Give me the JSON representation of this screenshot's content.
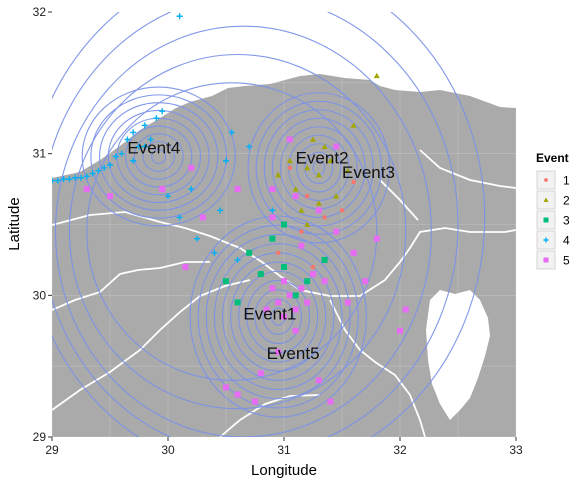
{
  "chart_data": {
    "type": "scatter",
    "title": "",
    "xlabel": "Longitude",
    "ylabel": "Latitude",
    "xlim": [
      29,
      33
    ],
    "ylim": [
      29,
      32
    ],
    "x_ticks": [
      29,
      30,
      31,
      32,
      33
    ],
    "y_ticks": [
      29,
      30,
      31,
      32
    ],
    "x_tick_labels": [
      "29",
      "30",
      "31",
      "32",
      "33"
    ],
    "y_tick_labels": [
      "29",
      "30",
      "31",
      "32"
    ],
    "grid": true,
    "legend": {
      "title": "Event",
      "placement": "right",
      "entries": [
        {
          "label": "1",
          "color": "#F8766D",
          "shape": "circle"
        },
        {
          "label": "2",
          "color": "#A3A500",
          "shape": "triangle"
        },
        {
          "label": "3",
          "color": "#00BF7D",
          "shape": "square"
        },
        {
          "label": "4",
          "color": "#00B0F6",
          "shape": "plus"
        },
        {
          "label": "5",
          "color": "#E76BF3",
          "shape": "square"
        }
      ]
    },
    "annotations": [
      {
        "text": "Event4",
        "x": 29.65,
        "y": 31.0
      },
      {
        "text": "Event2",
        "x": 31.1,
        "y": 30.93
      },
      {
        "text": "Event3",
        "x": 31.5,
        "y": 30.83
      },
      {
        "text": "Event1",
        "x": 30.65,
        "y": 29.83
      },
      {
        "text": "Event5",
        "x": 30.85,
        "y": 29.55
      }
    ],
    "series": [
      {
        "name": "1",
        "points": [
          [
            31.2,
            30.7
          ],
          [
            31.35,
            30.55
          ],
          [
            31.05,
            30.9
          ],
          [
            31.5,
            30.6
          ],
          [
            30.95,
            30.3
          ],
          [
            31.25,
            30.2
          ],
          [
            31.6,
            30.8
          ],
          [
            31.15,
            30.45
          ]
        ]
      },
      {
        "name": "2",
        "points": [
          [
            31.2,
            30.9
          ],
          [
            31.3,
            30.85
          ],
          [
            31.4,
            30.95
          ],
          [
            31.1,
            30.75
          ],
          [
            31.35,
            31.05
          ],
          [
            31.45,
            30.7
          ],
          [
            31.05,
            30.95
          ],
          [
            31.25,
            31.1
          ],
          [
            31.55,
            30.88
          ],
          [
            31.15,
            30.6
          ],
          [
            31.3,
            30.65
          ],
          [
            30.95,
            30.85
          ],
          [
            31.6,
            31.2
          ],
          [
            31.8,
            31.55
          ],
          [
            31.2,
            30.5
          ]
        ]
      },
      {
        "name": "3",
        "points": [
          [
            30.9,
            30.4
          ],
          [
            31.0,
            30.2
          ],
          [
            31.1,
            30.0
          ],
          [
            30.8,
            30.15
          ],
          [
            31.2,
            30.1
          ],
          [
            30.7,
            30.3
          ],
          [
            30.5,
            30.1
          ],
          [
            31.35,
            30.25
          ],
          [
            31.0,
            30.5
          ],
          [
            30.6,
            29.95
          ]
        ]
      },
      {
        "name": "4",
        "points": [
          [
            29.7,
            31.15
          ],
          [
            29.75,
            31.05
          ],
          [
            29.8,
            31.2
          ],
          [
            29.65,
            31.1
          ],
          [
            29.85,
            31.1
          ],
          [
            29.6,
            31.0
          ],
          [
            29.9,
            31.25
          ],
          [
            29.55,
            30.98
          ],
          [
            29.7,
            30.95
          ],
          [
            29.8,
            31.05
          ],
          [
            29.95,
            31.3
          ],
          [
            29.5,
            30.92
          ],
          [
            29.45,
            30.9
          ],
          [
            29.4,
            30.88
          ],
          [
            29.35,
            30.86
          ],
          [
            29.3,
            30.84
          ],
          [
            29.25,
            30.83
          ],
          [
            29.2,
            30.83
          ],
          [
            29.15,
            30.82
          ],
          [
            29.1,
            30.82
          ],
          [
            29.05,
            30.81
          ],
          [
            29.0,
            30.81
          ],
          [
            30.0,
            30.7
          ],
          [
            30.1,
            30.55
          ],
          [
            30.25,
            30.4
          ],
          [
            30.4,
            30.3
          ],
          [
            30.6,
            30.25
          ],
          [
            30.9,
            30.6
          ],
          [
            30.5,
            30.95
          ],
          [
            30.55,
            31.15
          ],
          [
            30.7,
            31.05
          ],
          [
            30.45,
            30.6
          ],
          [
            30.2,
            30.75
          ],
          [
            30.1,
            31.97
          ]
        ]
      },
      {
        "name": "5",
        "points": [
          [
            30.95,
            29.95
          ],
          [
            31.0,
            29.85
          ],
          [
            31.05,
            30.0
          ],
          [
            31.1,
            29.9
          ],
          [
            30.9,
            30.05
          ],
          [
            31.15,
            30.05
          ],
          [
            30.85,
            29.9
          ],
          [
            31.2,
            29.95
          ],
          [
            31.0,
            30.1
          ],
          [
            31.25,
            30.15
          ],
          [
            31.35,
            30.1
          ],
          [
            31.1,
            29.75
          ],
          [
            30.95,
            29.6
          ],
          [
            30.8,
            29.45
          ],
          [
            30.6,
            29.3
          ],
          [
            30.5,
            29.35
          ],
          [
            30.75,
            29.25
          ],
          [
            31.3,
            29.4
          ],
          [
            31.4,
            29.25
          ],
          [
            31.55,
            29.95
          ],
          [
            31.7,
            30.1
          ],
          [
            31.6,
            30.3
          ],
          [
            31.45,
            30.45
          ],
          [
            31.3,
            30.6
          ],
          [
            31.1,
            30.7
          ],
          [
            30.9,
            30.75
          ],
          [
            31.05,
            31.1
          ],
          [
            30.6,
            30.75
          ],
          [
            30.3,
            30.55
          ],
          [
            30.2,
            30.9
          ],
          [
            29.95,
            30.75
          ],
          [
            29.5,
            30.7
          ],
          [
            29.3,
            30.75
          ],
          [
            30.15,
            30.2
          ],
          [
            31.8,
            30.4
          ],
          [
            32.05,
            29.9
          ],
          [
            32.0,
            29.75
          ],
          [
            31.45,
            31.05
          ],
          [
            30.9,
            30.55
          ],
          [
            31.15,
            30.35
          ]
        ]
      }
    ]
  }
}
